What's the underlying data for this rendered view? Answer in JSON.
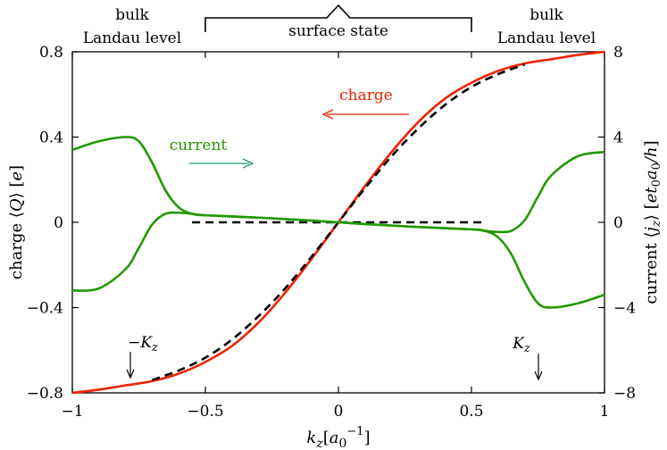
{
  "chart_data": {
    "type": "line",
    "xlabel": "k_z[a_0^{-1}]",
    "ylabel_left": "charge ⟨Q⟩ [e]",
    "ylabel_right": "current ⟨j_z⟩ [e t_0 a_0/h]",
    "xlim": [
      -1,
      1
    ],
    "ylim_left": [
      -0.8,
      0.8
    ],
    "ylim_right": [
      -8,
      8
    ],
    "grid": false,
    "x_ticks": [
      {
        "v": -1,
        "label": "−1"
      },
      {
        "v": -0.5,
        "label": "−0.5"
      },
      {
        "v": 0,
        "label": "0"
      },
      {
        "v": 0.5,
        "label": "0.5"
      },
      {
        "v": 1,
        "label": "1"
      }
    ],
    "y_ticks_left": [
      {
        "v": -0.8,
        "label": "−0.8"
      },
      {
        "v": -0.4,
        "label": "−0.4"
      },
      {
        "v": 0,
        "label": "0"
      },
      {
        "v": 0.4,
        "label": "0.4"
      },
      {
        "v": 0.8,
        "label": "0.8"
      }
    ],
    "y_ticks_right": [
      {
        "v": -8,
        "label": "−8"
      },
      {
        "v": -4,
        "label": "−4"
      },
      {
        "v": 0,
        "label": "0"
      },
      {
        "v": 4,
        "label": "4"
      },
      {
        "v": 8,
        "label": "8"
      }
    ],
    "series": [
      {
        "color": "#ee2200",
        "axis": "left",
        "dash": "",
        "x": [
          -1,
          -0.9,
          -0.8,
          -0.7,
          -0.6,
          -0.5,
          -0.4,
          -0.3,
          -0.2,
          -0.1,
          0,
          0.1,
          0.2,
          0.3,
          0.4,
          0.5,
          0.6,
          0.7,
          0.8,
          0.9,
          1
        ],
        "y": [
          -0.8,
          -0.785,
          -0.765,
          -0.745,
          -0.71,
          -0.655,
          -0.58,
          -0.47,
          -0.33,
          -0.17,
          0.0,
          0.17,
          0.33,
          0.47,
          0.58,
          0.655,
          0.71,
          0.745,
          0.765,
          0.785,
          0.8
        ]
      },
      {
        "color": "#000000",
        "axis": "left",
        "dash": "9,6",
        "x": [
          -0.7,
          -0.6,
          -0.5,
          -0.4,
          -0.3,
          -0.2,
          -0.1,
          0,
          0.1,
          0.2,
          0.3,
          0.4,
          0.5,
          0.6,
          0.7
        ],
        "y": [
          -0.74,
          -0.695,
          -0.635,
          -0.55,
          -0.44,
          -0.31,
          -0.16,
          0.0,
          0.16,
          0.31,
          0.44,
          0.55,
          0.635,
          0.695,
          0.74
        ]
      },
      {
        "color": "#000000",
        "axis": "left",
        "dash": "9,6",
        "x": [
          -0.55,
          0.55
        ],
        "y": [
          0.0,
          0.0
        ]
      },
      {
        "color": "#229900",
        "axis": "right",
        "dash": "",
        "x": [
          -1,
          -0.9,
          -0.8,
          -0.75,
          -0.7,
          -0.65,
          -0.6,
          -0.55,
          -0.5,
          -0.3,
          -0.1,
          0,
          0.1,
          0.3,
          0.5,
          0.55,
          0.6,
          0.65,
          0.7,
          0.75,
          0.8,
          0.9,
          1
        ],
        "y": [
          3.4,
          3.8,
          4.0,
          3.8,
          2.8,
          1.5,
          0.7,
          0.4,
          0.33,
          0.22,
          0.08,
          0.0,
          -0.08,
          -0.22,
          -0.33,
          -0.4,
          -0.7,
          -1.5,
          -2.8,
          -3.8,
          -4.0,
          -3.8,
          -3.4
        ]
      },
      {
        "color": "#229900",
        "axis": "right",
        "dash": "",
        "x": [
          -1,
          -0.9,
          -0.8,
          -0.75,
          -0.7,
          -0.65,
          -0.6,
          -0.55,
          -0.5,
          -0.3,
          -0.1,
          0,
          0.1,
          0.3,
          0.5,
          0.55,
          0.6,
          0.65,
          0.7,
          0.75,
          0.8,
          0.9,
          1
        ],
        "y": [
          -3.2,
          -3.1,
          -2.2,
          -1.2,
          -0.1,
          0.4,
          0.45,
          0.4,
          0.33,
          0.22,
          0.08,
          0.0,
          -0.08,
          -0.22,
          -0.33,
          -0.4,
          -0.45,
          -0.4,
          0.1,
          1.2,
          2.2,
          3.1,
          3.3
        ]
      }
    ],
    "annotations": {
      "bulk_left_1": "bulk",
      "bulk_left_2": "Landau level",
      "bulk_right_1": "bulk",
      "bulk_right_2": "Landau level",
      "surface": "surface state",
      "charge": "charge",
      "current": "current",
      "minus_kz": "−K_z",
      "kz": "K_z",
      "charge_color": "#ee2200",
      "current_color": "#229977"
    }
  }
}
